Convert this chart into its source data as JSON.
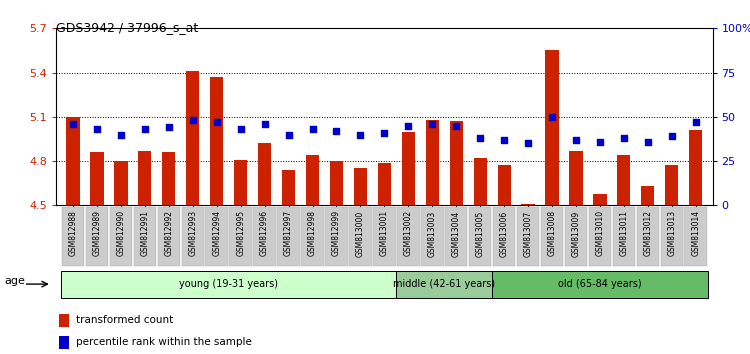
{
  "title": "GDS3942 / 37996_s_at",
  "samples": [
    "GSM812988",
    "GSM812989",
    "GSM812990",
    "GSM812991",
    "GSM812992",
    "GSM812993",
    "GSM812994",
    "GSM812995",
    "GSM812996",
    "GSM812997",
    "GSM812998",
    "GSM812999",
    "GSM813000",
    "GSM813001",
    "GSM813002",
    "GSM813003",
    "GSM813004",
    "GSM813005",
    "GSM813006",
    "GSM813007",
    "GSM813008",
    "GSM813009",
    "GSM813010",
    "GSM813011",
    "GSM813012",
    "GSM813013",
    "GSM813014"
  ],
  "bar_values": [
    5.1,
    4.86,
    4.8,
    4.87,
    4.86,
    5.41,
    5.37,
    4.81,
    4.92,
    4.74,
    4.84,
    4.8,
    4.75,
    4.79,
    5.0,
    5.08,
    5.07,
    4.82,
    4.77,
    4.51,
    5.55,
    4.87,
    4.58,
    4.84,
    4.63,
    4.77,
    5.01
  ],
  "percentile_values": [
    46,
    43,
    40,
    43,
    44,
    48,
    47,
    43,
    46,
    40,
    43,
    42,
    40,
    41,
    45,
    46,
    45,
    38,
    37,
    35,
    50,
    37,
    36,
    38,
    36,
    39,
    47
  ],
  "bar_color": "#cc2200",
  "dot_color": "#0000cc",
  "ylim_left": [
    4.5,
    5.7
  ],
  "ylim_right": [
    0,
    100
  ],
  "yticks_left": [
    4.5,
    4.8,
    5.1,
    5.4,
    5.7
  ],
  "yticks_right": [
    0,
    25,
    50,
    75,
    100
  ],
  "ytick_labels_right": [
    "0",
    "25",
    "50",
    "75",
    "100%"
  ],
  "groups": [
    {
      "label": "young (19-31 years)",
      "start": 0,
      "end": 14,
      "color": "#ccffcc"
    },
    {
      "label": "middle (42-61 years)",
      "start": 14,
      "end": 18,
      "color": "#99cc99"
    },
    {
      "label": "old (65-84 years)",
      "start": 18,
      "end": 27,
      "color": "#66bb66"
    }
  ],
  "legend_items": [
    {
      "label": "transformed count",
      "color": "#cc2200"
    },
    {
      "label": "percentile rank within the sample",
      "color": "#0000cc"
    }
  ],
  "age_label": "age",
  "tick_color_left": "#cc2200",
  "tick_color_right": "#0000cc"
}
